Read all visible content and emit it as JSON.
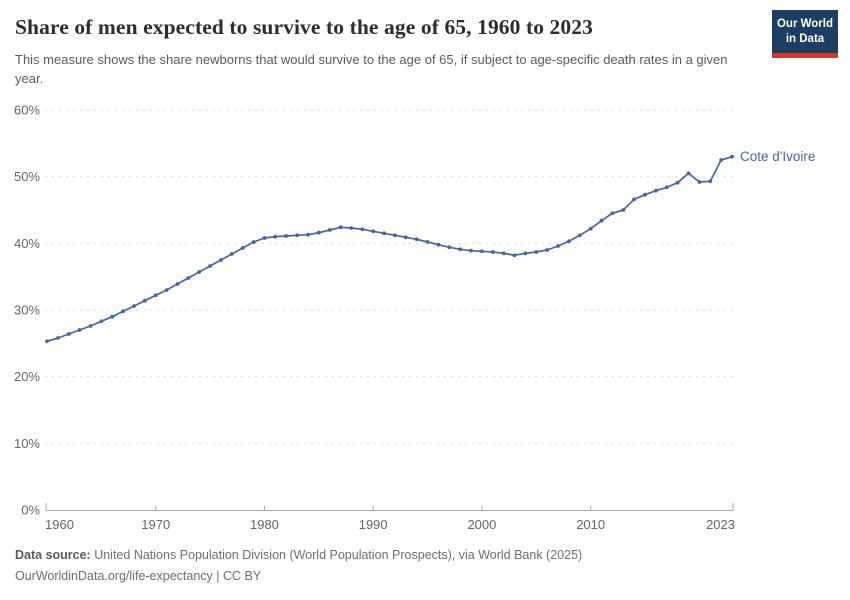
{
  "header": {
    "title": "Share of men expected to survive to the age of 65, 1960 to 2023",
    "subtitle": "This measure shows the share newborns that would survive to the age of 65, if subject to age-specific death rates in a given year.",
    "logo": {
      "line1": "Our World",
      "line2": "in Data"
    }
  },
  "chart_data": {
    "type": "line",
    "title": "Share of men expected to survive to the age of 65, 1960 to 2023",
    "entity": "Cote d'Ivoire",
    "line_color": "#4664a0",
    "grid": "horizontal-dashed",
    "legend_position": "end-of-line-label",
    "xlim": [
      1960,
      2023
    ],
    "ylim": [
      0,
      60
    ],
    "xticks": [
      1960,
      1970,
      1980,
      1990,
      2000,
      2010,
      2023
    ],
    "yticks": [
      0,
      10,
      20,
      30,
      40,
      50,
      60
    ],
    "ytick_suffix": "%",
    "x": [
      1960,
      1961,
      1962,
      1963,
      1964,
      1965,
      1966,
      1967,
      1968,
      1969,
      1970,
      1971,
      1972,
      1973,
      1974,
      1975,
      1976,
      1977,
      1978,
      1979,
      1980,
      1981,
      1982,
      1983,
      1984,
      1985,
      1986,
      1987,
      1988,
      1989,
      1990,
      1991,
      1992,
      1993,
      1994,
      1995,
      1996,
      1997,
      1998,
      1999,
      2000,
      2001,
      2002,
      2003,
      2004,
      2005,
      2006,
      2007,
      2008,
      2009,
      2010,
      2011,
      2012,
      2013,
      2014,
      2015,
      2016,
      2017,
      2018,
      2019,
      2020,
      2021,
      2022,
      2023
    ],
    "series": [
      {
        "name": "Cote d'Ivoire",
        "values": [
          25.3,
          25.8,
          26.4,
          27.0,
          27.6,
          28.3,
          29.0,
          29.8,
          30.6,
          31.4,
          32.2,
          33.0,
          33.9,
          34.8,
          35.7,
          36.6,
          37.5,
          38.4,
          39.3,
          40.2,
          40.8,
          41.0,
          41.1,
          41.2,
          41.3,
          41.6,
          42.0,
          42.4,
          42.3,
          42.1,
          41.8,
          41.5,
          41.2,
          40.9,
          40.6,
          40.2,
          39.8,
          39.4,
          39.1,
          38.9,
          38.8,
          38.7,
          38.5,
          38.2,
          38.5,
          38.7,
          39.0,
          39.6,
          40.3,
          41.2,
          42.2,
          43.4,
          44.5,
          45.0,
          46.6,
          47.3,
          47.9,
          48.4,
          49.1,
          50.5,
          49.2,
          49.3,
          52.5,
          53.0
        ]
      }
    ],
    "colors": {
      "gridline": "#dadada",
      "axis": "#a8a8a8",
      "tick_label": "#666666"
    }
  },
  "footer": {
    "source_label": "Data source:",
    "source_text": " United Nations Population Division (World Population Prospects), via World Bank (2025)",
    "attribution": "OurWorldinData.org/life-expectancy | CC BY"
  }
}
